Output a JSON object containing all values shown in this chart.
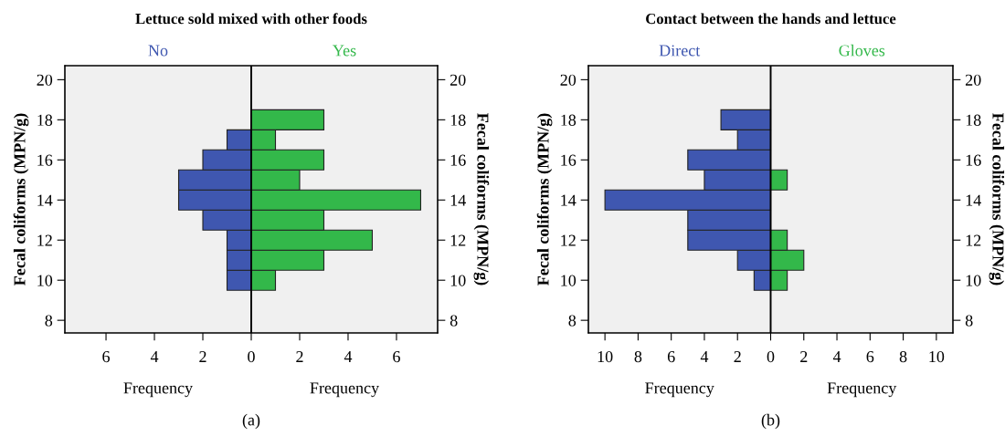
{
  "chart_data": [
    {
      "type": "bar",
      "orientation": "horizontal",
      "stacked": true,
      "title": "Lettuce sold mixed with other foods",
      "xlabel": "Frequency",
      "ylabel": "Fecal coliforms (MPN/g)",
      "y2label": "Fecal coliforms (MPN/g)",
      "annotations": [
        "(a)"
      ],
      "x": [
        10,
        11,
        12,
        13,
        14,
        15,
        16,
        17,
        18
      ],
      "series": [
        {
          "name": "No",
          "color": "#3f57b0",
          "values": [
            -1,
            -1,
            -1,
            -2,
            -3,
            -3,
            -2,
            -1,
            0
          ]
        },
        {
          "name": "Yes",
          "color": "#33b84a",
          "values": [
            1,
            3,
            5,
            3,
            7,
            2,
            3,
            1,
            3
          ]
        }
      ],
      "ref_lines": [
        {
          "axis": "x",
          "value": 0,
          "color": "#000000"
        }
      ],
      "xlim": [
        -7.7,
        7.7
      ],
      "xticks": [
        {
          "value": -6,
          "label": "6"
        },
        {
          "value": -4,
          "label": "4"
        },
        {
          "value": -2,
          "label": "2"
        },
        0,
        2,
        4,
        6
      ],
      "ylim": [
        7.37,
        20.7
      ],
      "yticks": [
        8,
        10,
        12,
        14,
        16,
        18,
        20
      ],
      "y2lim": [
        7.37,
        20.7
      ],
      "y2ticks": [
        8,
        10,
        12,
        14,
        16,
        18,
        20
      ]
    },
    {
      "type": "bar",
      "orientation": "horizontal",
      "stacked": true,
      "title": "Contact between the hands and lettuce",
      "xlabel": "Frequency",
      "ylabel": "Fecal coliforms (MPN/g)",
      "y2label": "Fecal coliforms (MPN/g)",
      "annotations": [
        "(b)"
      ],
      "x": [
        10,
        11,
        12,
        13,
        14,
        15,
        16,
        17,
        18
      ],
      "series": [
        {
          "name": "Direct",
          "color": "#3f57b0",
          "values": [
            -1,
            -2,
            -5,
            -5,
            -10,
            -4,
            -5,
            -2,
            -3
          ]
        },
        {
          "name": "Gloves",
          "color": "#33b84a",
          "values": [
            1,
            2,
            1,
            0,
            0,
            1,
            0,
            0,
            0
          ]
        }
      ],
      "ref_lines": [
        {
          "axis": "x",
          "value": 0,
          "color": "#000000"
        }
      ],
      "xlim": [
        -11,
        11
      ],
      "xticks": [
        {
          "value": -10,
          "label": "10"
        },
        {
          "value": -8,
          "label": "8"
        },
        {
          "value": -6,
          "label": "6"
        },
        {
          "value": -4,
          "label": "4"
        },
        {
          "value": -2,
          "label": "2"
        },
        0,
        2,
        4,
        6,
        8,
        10
      ],
      "ylim": [
        7.37,
        20.7
      ],
      "yticks": [
        8,
        10,
        12,
        14,
        16,
        18,
        20
      ],
      "y2lim": [
        7.37,
        20.7
      ],
      "y2ticks": [
        8,
        10,
        12,
        14,
        16,
        18,
        20
      ]
    }
  ]
}
